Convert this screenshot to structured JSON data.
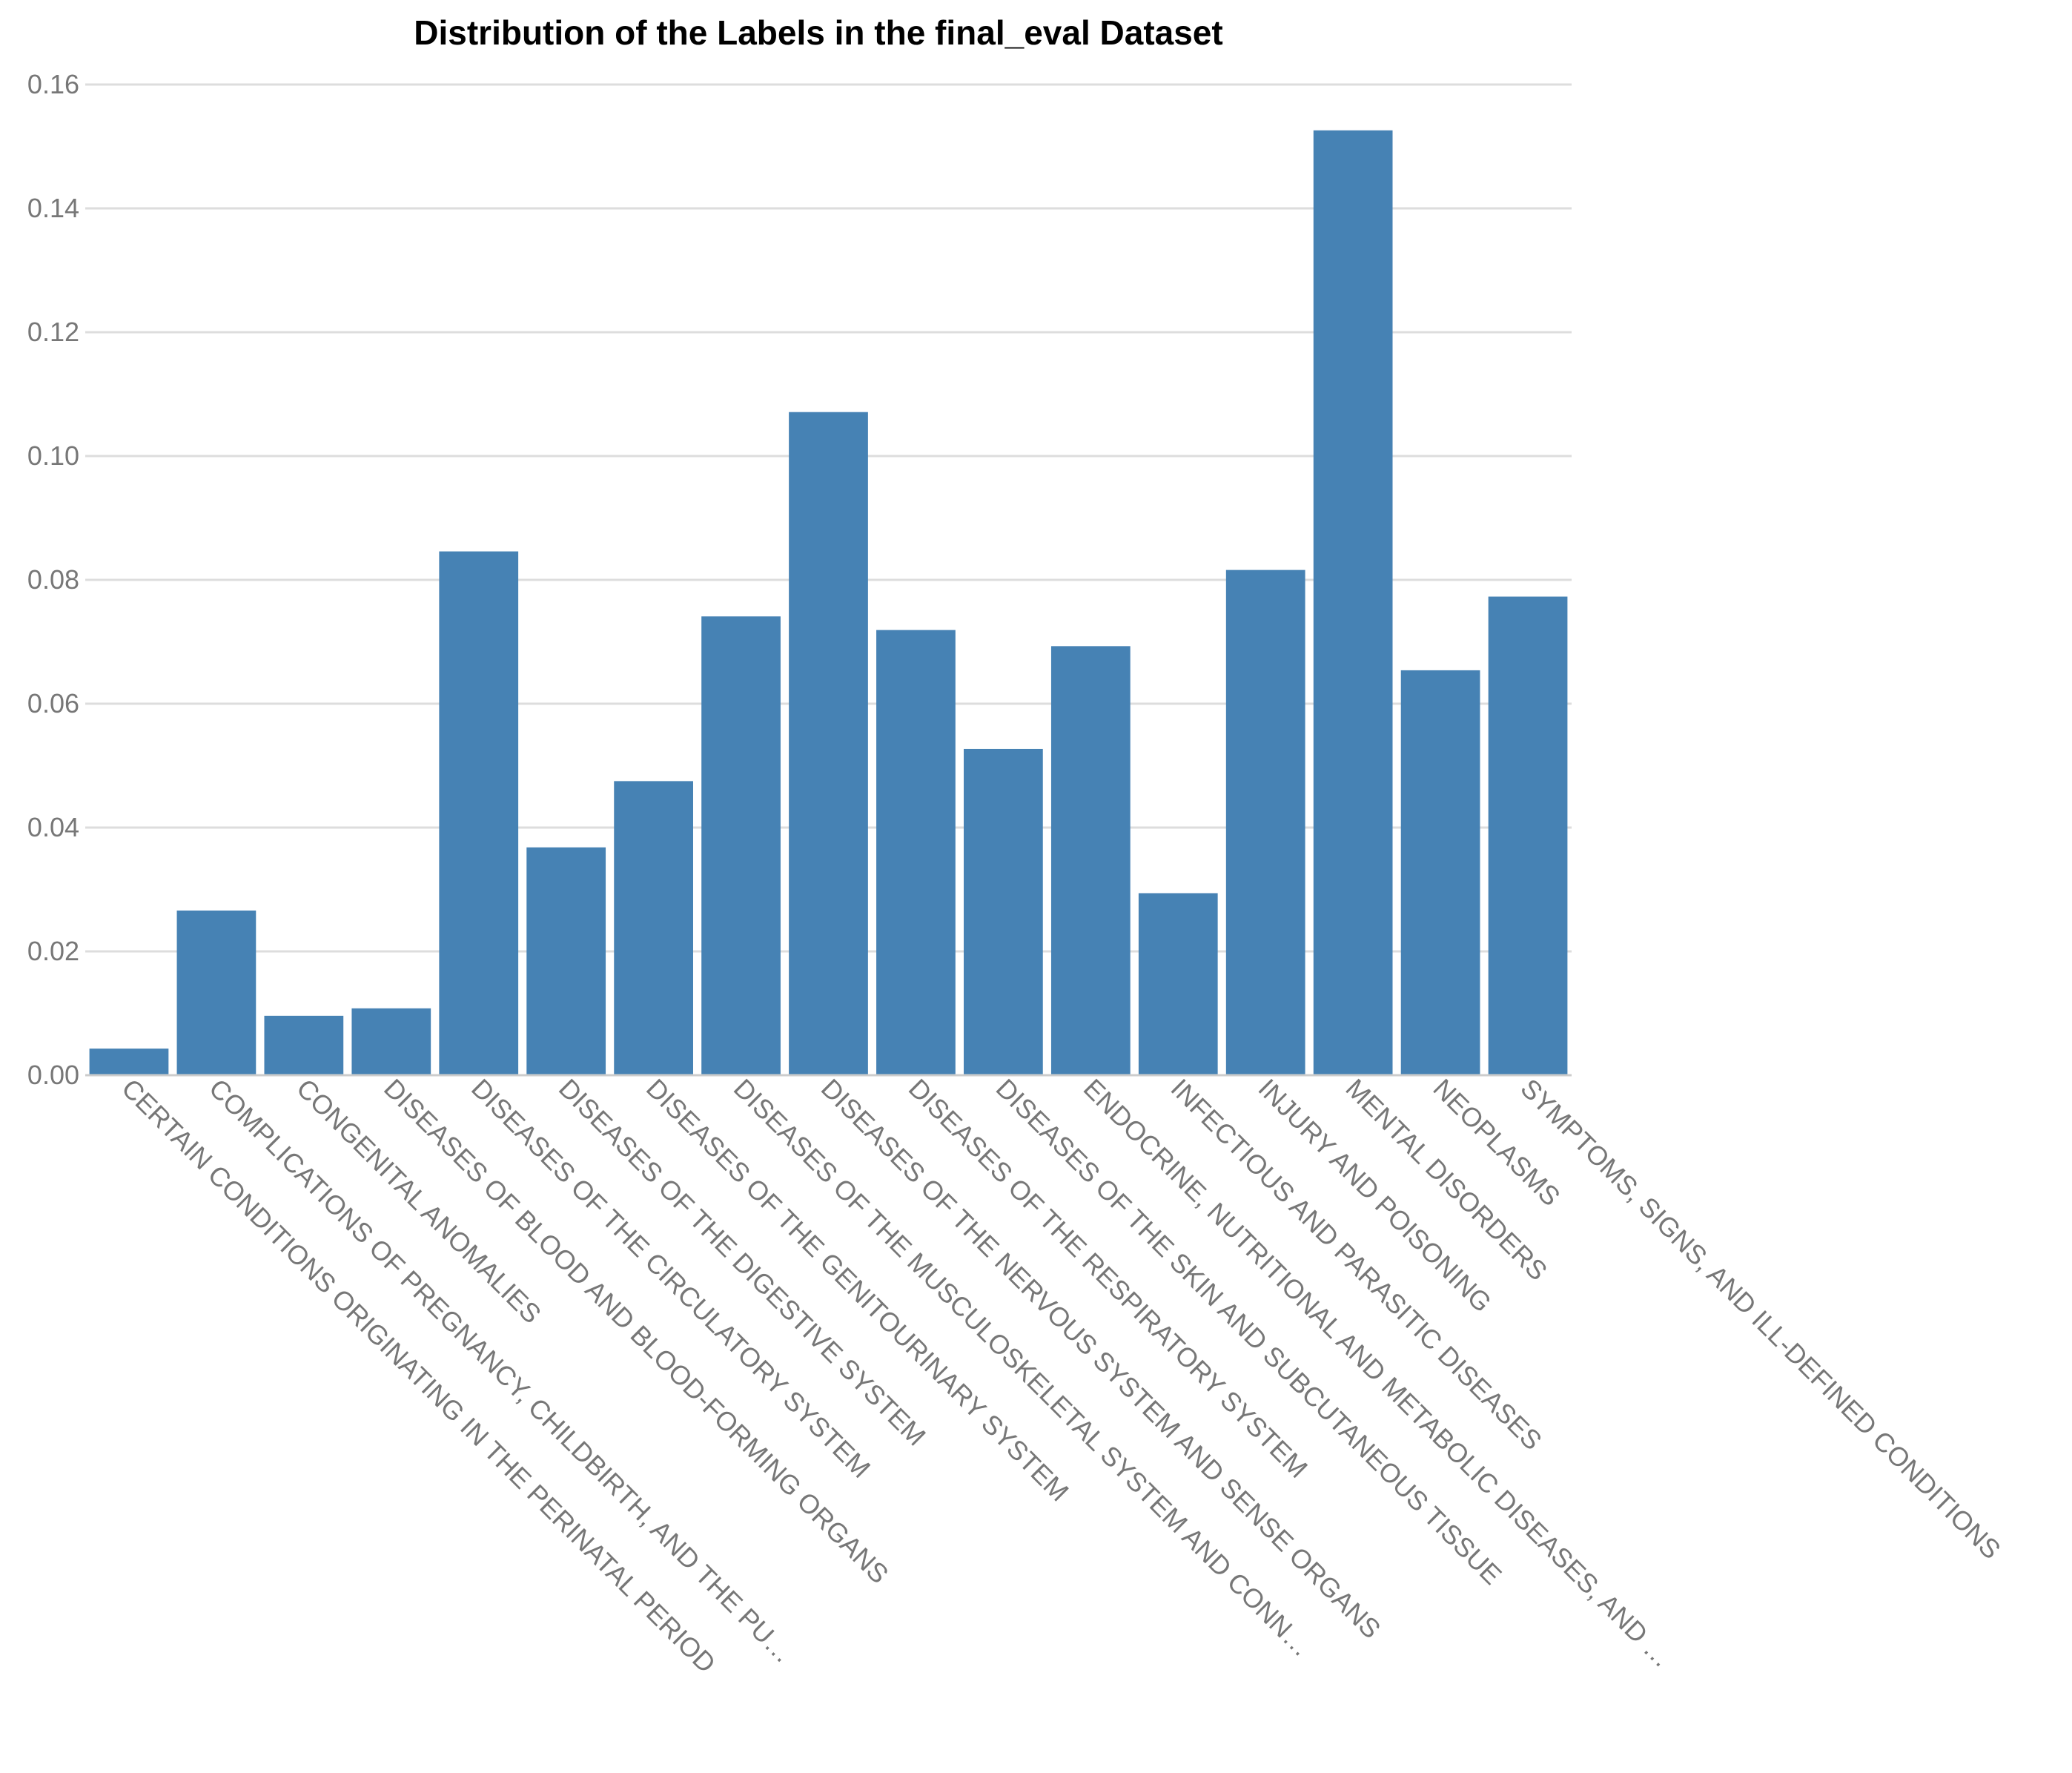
{
  "chart_data": {
    "type": "bar",
    "title": "Distribution of the Labels in the final_eval Dataset",
    "xlabel": "",
    "ylabel": "",
    "ylim": [
      0,
      0.16
    ],
    "yticks": [
      "0.00",
      "0.02",
      "0.04",
      "0.06",
      "0.08",
      "0.10",
      "0.12",
      "0.14",
      "0.16"
    ],
    "grid": true,
    "bar_color": "#4682b4",
    "categories": [
      "CERTAIN CONDITIONS ORIGINATING IN THE PERINATAL PERIOD",
      "COMPLICATIONS OF PREGNANCY, CHILDBIRTH, AND THE PU…",
      "CONGENITAL ANOMALIES",
      "DISEASES OF BLOOD AND BLOOD-FORMING ORGANS",
      "DISEASES OF THE CIRCULATORY SYSTEM",
      "DISEASES OF THE DIGESTIVE SYSTEM",
      "DISEASES OF THE GENITOURINARY SYSTEM",
      "DISEASES OF THE MUSCULOSKELETAL SYSTEM AND CONN…",
      "DISEASES OF THE NERVOUS SYSTEM AND SENSE ORGANS",
      "DISEASES OF THE RESPIRATORY SYSTEM",
      "DISEASES OF THE SKIN AND SUBCUTANEOUS TISSUE",
      "ENDOCRINE, NUTRITIONAL AND METABOLIC DISEASES, AND …",
      "INFECTIOUS AND PARASITIC DISEASES",
      "INJURY AND POISONING",
      "MENTAL DISORDERS",
      "NEOPLASMS",
      "SYMPTOMS, SIGNS, AND ILL-DEFINED CONDITIONS"
    ],
    "values": [
      0.0043,
      0.0266,
      0.0096,
      0.0108,
      0.0846,
      0.0368,
      0.0475,
      0.0741,
      0.1071,
      0.0719,
      0.0527,
      0.0693,
      0.0294,
      0.0816,
      0.1526,
      0.0654,
      0.0773
    ]
  }
}
